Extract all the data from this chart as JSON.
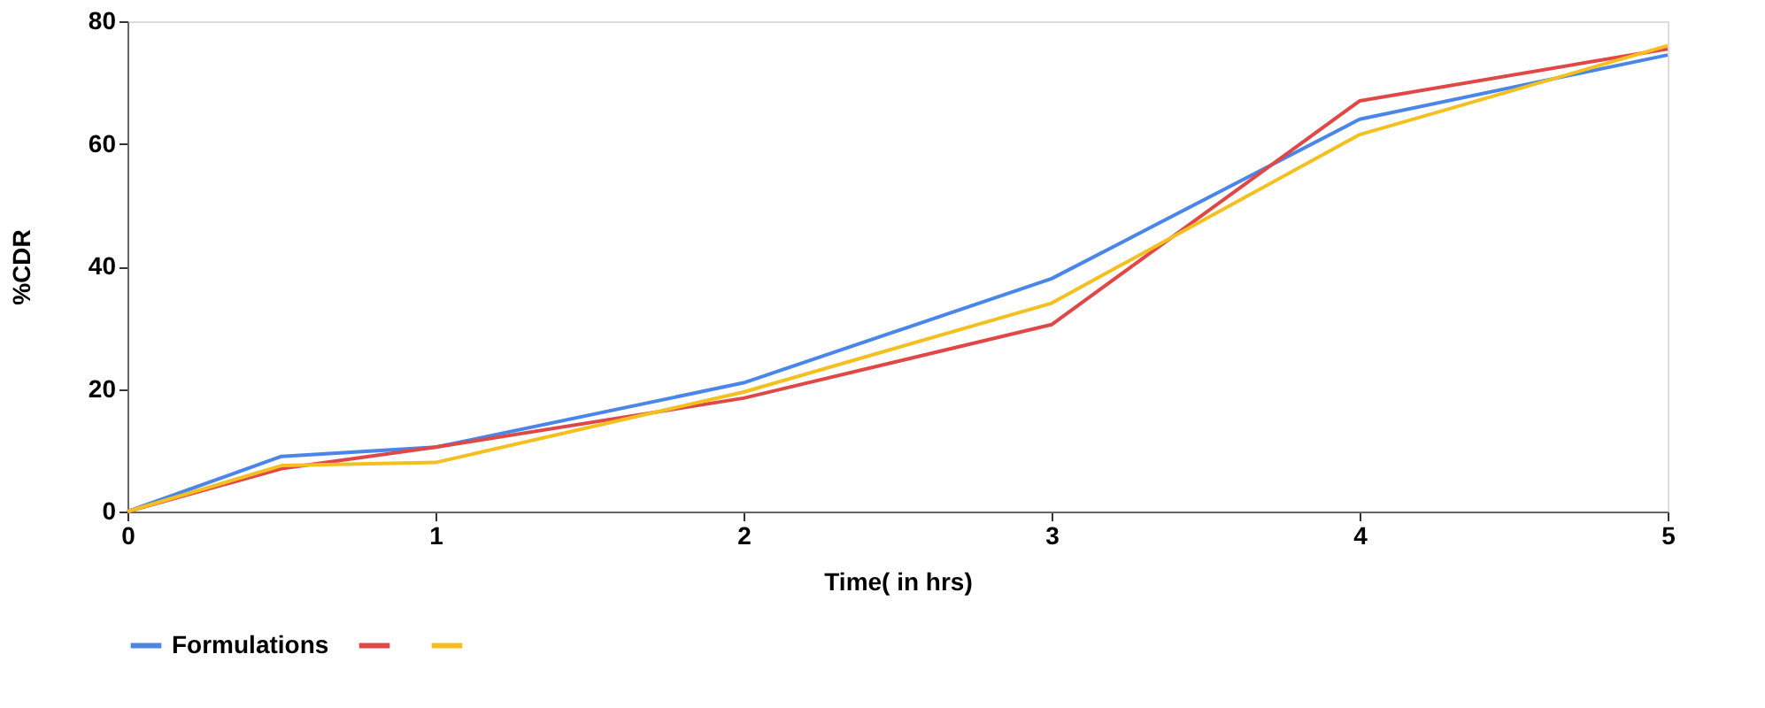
{
  "chart_data": {
    "type": "line",
    "xlabel": "Time( in hrs)",
    "ylabel": "%CDR",
    "x": [
      0,
      0.5,
      1,
      2,
      3,
      4,
      5
    ],
    "series": [
      {
        "name": "Formulations",
        "color": "#4a86e8",
        "values": [
          0,
          9,
          10.5,
          21,
          38,
          64,
          74.5
        ]
      },
      {
        "color": "#e04848",
        "values": [
          0,
          7,
          10.5,
          18.5,
          30.5,
          67,
          75.5
        ]
      },
      {
        "color": "#f4c020",
        "values": [
          0,
          7.5,
          8,
          19.5,
          34,
          61.5,
          76
        ]
      }
    ],
    "xlim": [
      0,
      5
    ],
    "xticks": [
      0,
      1,
      2,
      3,
      4,
      5
    ],
    "ylim": [
      0,
      80
    ],
    "yticks": [
      0,
      20,
      40,
      60,
      80
    ],
    "grid": false,
    "legend": "bottom",
    "marker": "none",
    "line_style": "solid"
  }
}
